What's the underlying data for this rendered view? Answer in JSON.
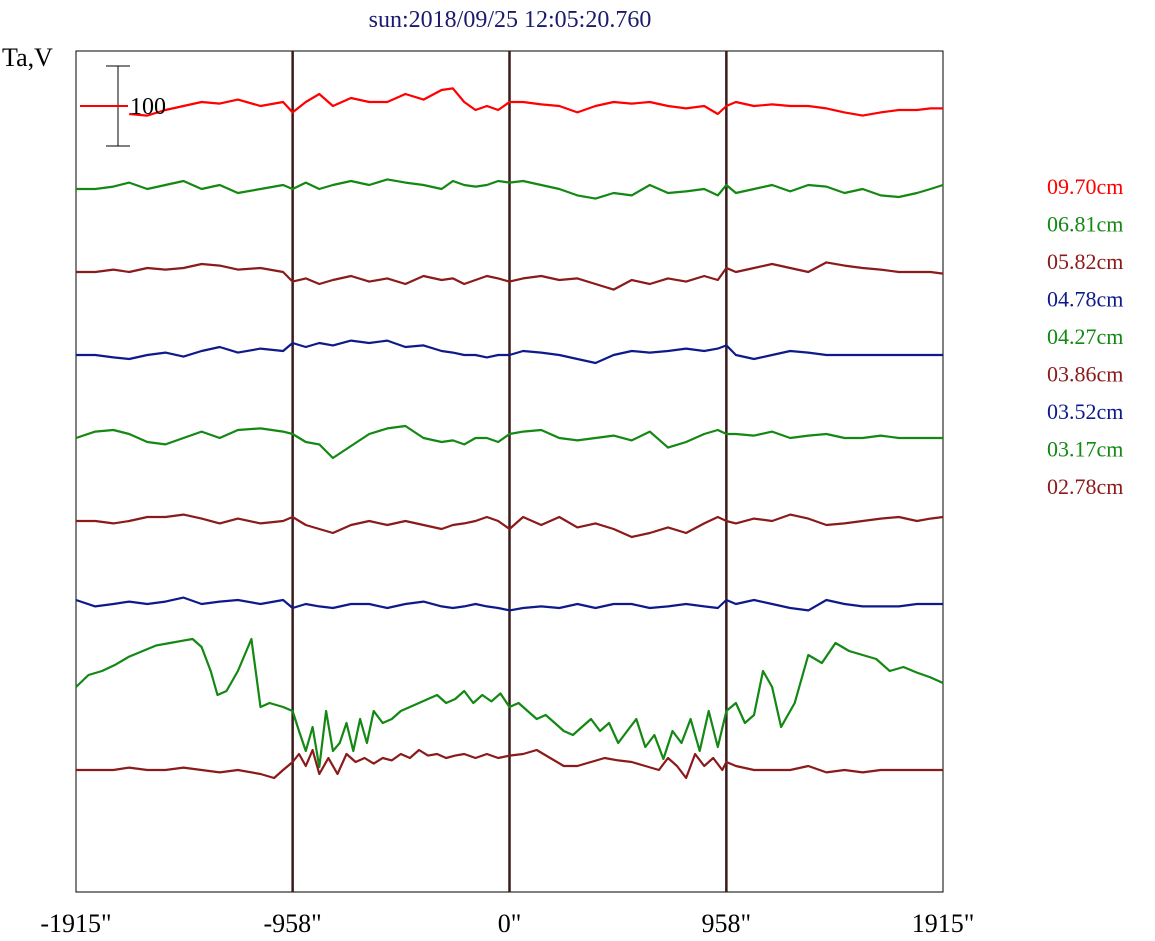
{
  "chart_data": {
    "type": "line",
    "title": "sun:2018/09/25 12:05:20.760",
    "ylabel": "Ta,V",
    "xlabel": "",
    "xlim": [
      -1915,
      1915
    ],
    "x_ticks": [
      "-1915\"",
      "-958\"",
      "0\"",
      "958\"",
      "1915\""
    ],
    "vertical_markers": [
      -958,
      0,
      958
    ],
    "marker_color": "#3a1a1a",
    "scale_bar": {
      "label": "100",
      "value": 100,
      "color_line": "#ff0000"
    },
    "grid": false,
    "legend_position": "right",
    "series": [
      {
        "name": "09.70cm",
        "color": "#ff0000",
        "offset": 0,
        "x": [
          -1915,
          -1830,
          -1750,
          -1680,
          -1600,
          -1520,
          -1440,
          -1360,
          -1280,
          -1200,
          -1100,
          -1000,
          -958,
          -900,
          -840,
          -780,
          -700,
          -620,
          -540,
          -460,
          -380,
          -300,
          -250,
          -200,
          -150,
          -100,
          -50,
          0,
          60,
          140,
          220,
          300,
          380,
          460,
          540,
          620,
          700,
          780,
          860,
          920,
          958,
          1000,
          1080,
          1160,
          1240,
          1320,
          1400,
          1480,
          1560,
          1640,
          1720,
          1800,
          1860,
          1915
        ],
        "values": [
          null,
          null,
          null,
          -10,
          -12,
          -5,
          0,
          5,
          3,
          8,
          0,
          5,
          -8,
          5,
          15,
          0,
          10,
          5,
          5,
          15,
          8,
          20,
          22,
          5,
          -5,
          0,
          -5,
          5,
          5,
          2,
          0,
          -8,
          0,
          5,
          3,
          5,
          0,
          -3,
          0,
          -10,
          0,
          5,
          0,
          2,
          0,
          0,
          -3,
          -8,
          -12,
          -8,
          -5,
          -5,
          -3,
          -3
        ]
      },
      {
        "name": "06.81cm",
        "color": "#138813",
        "offset": 1,
        "x": [
          -1915,
          -1830,
          -1750,
          -1680,
          -1600,
          -1520,
          -1440,
          -1360,
          -1280,
          -1200,
          -1100,
          -1000,
          -958,
          -900,
          -840,
          -780,
          -700,
          -620,
          -540,
          -460,
          -380,
          -300,
          -250,
          -200,
          -150,
          -100,
          -50,
          0,
          60,
          140,
          220,
          300,
          380,
          460,
          540,
          620,
          700,
          780,
          860,
          920,
          958,
          1000,
          1080,
          1160,
          1240,
          1320,
          1400,
          1480,
          1560,
          1640,
          1720,
          1800,
          1860,
          1915
        ],
        "values": [
          0,
          0,
          3,
          8,
          0,
          5,
          10,
          0,
          5,
          -5,
          0,
          5,
          0,
          8,
          0,
          5,
          10,
          5,
          12,
          8,
          5,
          0,
          10,
          5,
          3,
          5,
          10,
          8,
          10,
          5,
          0,
          -8,
          -12,
          -5,
          -8,
          5,
          -5,
          -3,
          0,
          -8,
          5,
          -5,
          0,
          5,
          -3,
          5,
          3,
          -5,
          0,
          -8,
          -10,
          -5,
          0,
          5
        ]
      },
      {
        "name": "05.82cm",
        "color": "#8b1a1a",
        "offset": 2,
        "x": [
          -1915,
          -1830,
          -1750,
          -1680,
          -1600,
          -1520,
          -1440,
          -1360,
          -1280,
          -1200,
          -1100,
          -1000,
          -958,
          -900,
          -840,
          -780,
          -700,
          -620,
          -540,
          -460,
          -380,
          -300,
          -250,
          -200,
          -150,
          -100,
          -50,
          0,
          60,
          140,
          220,
          300,
          380,
          460,
          540,
          620,
          700,
          780,
          860,
          920,
          958,
          1000,
          1080,
          1160,
          1240,
          1320,
          1400,
          1480,
          1560,
          1640,
          1720,
          1800,
          1860,
          1915
        ],
        "values": [
          0,
          0,
          3,
          0,
          5,
          3,
          5,
          10,
          8,
          3,
          5,
          0,
          -12,
          -8,
          -15,
          -10,
          -5,
          -12,
          -8,
          -15,
          -5,
          -10,
          -8,
          -15,
          -10,
          -5,
          -8,
          -12,
          -8,
          -5,
          -10,
          -8,
          -15,
          -22,
          -10,
          -15,
          -8,
          -12,
          -5,
          -10,
          5,
          0,
          5,
          10,
          5,
          0,
          12,
          8,
          5,
          3,
          0,
          0,
          0,
          -2
        ]
      },
      {
        "name": "04.78cm",
        "color": "#0f1a8a",
        "offset": 3,
        "x": [
          -1915,
          -1830,
          -1750,
          -1680,
          -1600,
          -1520,
          -1440,
          -1360,
          -1280,
          -1200,
          -1100,
          -1000,
          -958,
          -900,
          -840,
          -780,
          -700,
          -620,
          -540,
          -460,
          -380,
          -300,
          -250,
          -200,
          -150,
          -100,
          -50,
          0,
          60,
          140,
          220,
          300,
          380,
          460,
          540,
          620,
          700,
          780,
          860,
          920,
          958,
          1000,
          1080,
          1160,
          1240,
          1320,
          1400,
          1480,
          1560,
          1640,
          1720,
          1800,
          1860,
          1915
        ],
        "values": [
          0,
          0,
          -3,
          -5,
          0,
          3,
          -2,
          5,
          10,
          3,
          8,
          5,
          15,
          10,
          15,
          12,
          18,
          15,
          18,
          10,
          12,
          5,
          3,
          0,
          0,
          -3,
          0,
          0,
          5,
          3,
          0,
          -5,
          -10,
          0,
          5,
          3,
          5,
          8,
          5,
          8,
          12,
          0,
          -5,
          0,
          5,
          3,
          0,
          0,
          0,
          0,
          0,
          0,
          0,
          0
        ]
      },
      {
        "name": "04.27cm",
        "color": "#138813",
        "offset": 4,
        "x": [
          -1915,
          -1830,
          -1750,
          -1680,
          -1600,
          -1520,
          -1440,
          -1360,
          -1280,
          -1200,
          -1100,
          -1000,
          -958,
          -900,
          -840,
          -780,
          -700,
          -620,
          -540,
          -460,
          -380,
          -300,
          -250,
          -200,
          -150,
          -100,
          -50,
          0,
          60,
          140,
          220,
          300,
          380,
          460,
          540,
          620,
          700,
          780,
          860,
          920,
          958,
          1000,
          1080,
          1160,
          1240,
          1320,
          1400,
          1480,
          1560,
          1640,
          1720,
          1800,
          1860,
          1915
        ],
        "values": [
          0,
          8,
          10,
          5,
          -5,
          -8,
          0,
          8,
          0,
          10,
          12,
          8,
          5,
          -5,
          -8,
          -25,
          -10,
          5,
          12,
          15,
          0,
          -5,
          -3,
          -8,
          0,
          0,
          -5,
          5,
          8,
          10,
          0,
          -3,
          0,
          3,
          -3,
          8,
          -12,
          -5,
          5,
          10,
          5,
          5,
          3,
          8,
          0,
          3,
          5,
          0,
          0,
          3,
          0,
          0,
          0,
          0
        ]
      },
      {
        "name": "03.86cm",
        "color": "#8b1a1a",
        "offset": 5,
        "x": [
          -1915,
          -1830,
          -1750,
          -1680,
          -1600,
          -1520,
          -1440,
          -1360,
          -1280,
          -1200,
          -1100,
          -1000,
          -958,
          -900,
          -840,
          -780,
          -700,
          -620,
          -540,
          -460,
          -380,
          -300,
          -250,
          -200,
          -150,
          -100,
          -50,
          0,
          60,
          140,
          220,
          300,
          380,
          460,
          540,
          620,
          700,
          780,
          860,
          920,
          958,
          1000,
          1080,
          1160,
          1240,
          1320,
          1400,
          1480,
          1560,
          1640,
          1720,
          1800,
          1860,
          1915
        ],
        "values": [
          0,
          0,
          -3,
          0,
          5,
          5,
          8,
          3,
          -3,
          3,
          -3,
          0,
          5,
          -5,
          -10,
          -15,
          -5,
          0,
          -5,
          0,
          -5,
          -10,
          -5,
          -3,
          0,
          5,
          0,
          -10,
          5,
          -5,
          5,
          -8,
          -3,
          -10,
          -20,
          -15,
          -8,
          -15,
          -3,
          5,
          0,
          -3,
          3,
          0,
          8,
          3,
          -5,
          -3,
          0,
          3,
          5,
          0,
          3,
          5
        ]
      },
      {
        "name": "03.52cm",
        "color": "#0f1a8a",
        "offset": 6,
        "x": [
          -1915,
          -1830,
          -1750,
          -1680,
          -1600,
          -1520,
          -1440,
          -1360,
          -1280,
          -1200,
          -1100,
          -1000,
          -958,
          -900,
          -840,
          -780,
          -700,
          -620,
          -540,
          -460,
          -380,
          -300,
          -250,
          -200,
          -150,
          -100,
          -50,
          0,
          60,
          140,
          220,
          300,
          380,
          460,
          540,
          620,
          700,
          780,
          860,
          920,
          958,
          1000,
          1080,
          1160,
          1240,
          1320,
          1400,
          1480,
          1560,
          1640,
          1720,
          1800,
          1860,
          1915
        ],
        "values": [
          5,
          -3,
          0,
          3,
          0,
          3,
          8,
          0,
          3,
          5,
          0,
          5,
          -5,
          0,
          -3,
          -5,
          0,
          0,
          -5,
          0,
          3,
          -3,
          -5,
          -3,
          0,
          -3,
          -5,
          -8,
          -5,
          -3,
          -5,
          0,
          -5,
          0,
          0,
          -5,
          -3,
          0,
          -3,
          -5,
          5,
          0,
          5,
          0,
          -5,
          -8,
          5,
          0,
          -3,
          -3,
          -3,
          0,
          0,
          0
        ]
      },
      {
        "name": "03.17cm",
        "color": "#138813",
        "offset": 7,
        "x": [
          -1915,
          -1860,
          -1800,
          -1740,
          -1680,
          -1620,
          -1560,
          -1500,
          -1440,
          -1400,
          -1360,
          -1320,
          -1290,
          -1250,
          -1200,
          -1140,
          -1100,
          -1060,
          -1000,
          -958,
          -930,
          -900,
          -870,
          -840,
          -810,
          -780,
          -750,
          -720,
          -690,
          -660,
          -630,
          -600,
          -560,
          -520,
          -480,
          -440,
          -400,
          -360,
          -320,
          -280,
          -240,
          -200,
          -160,
          -120,
          -80,
          -40,
          0,
          40,
          80,
          120,
          160,
          200,
          240,
          280,
          320,
          360,
          400,
          440,
          480,
          520,
          560,
          600,
          640,
          680,
          720,
          760,
          800,
          840,
          880,
          920,
          958,
          1000,
          1040,
          1080,
          1120,
          1160,
          1200,
          1260,
          1320,
          1380,
          1440,
          1500,
          1560,
          1620,
          1680,
          1740,
          1800,
          1860,
          1915
        ],
        "values": [
          0,
          15,
          20,
          28,
          38,
          45,
          52,
          55,
          58,
          60,
          50,
          20,
          -10,
          -5,
          20,
          60,
          -25,
          -20,
          -25,
          -30,
          -55,
          -80,
          -50,
          -100,
          -30,
          -80,
          -70,
          -45,
          -80,
          -40,
          -70,
          -30,
          -45,
          -40,
          -30,
          -25,
          -20,
          -15,
          -10,
          -20,
          -15,
          -5,
          -20,
          -10,
          -18,
          -8,
          -25,
          -20,
          -30,
          -40,
          -35,
          -45,
          -55,
          -60,
          -50,
          -40,
          -55,
          -45,
          -70,
          -55,
          -40,
          -75,
          -60,
          -90,
          -55,
          -70,
          -40,
          -80,
          -30,
          -75,
          -30,
          -20,
          -45,
          -35,
          20,
          0,
          -50,
          -20,
          40,
          30,
          55,
          45,
          40,
          35,
          20,
          25,
          18,
          12,
          5
        ]
      },
      {
        "name": "02.78cm",
        "color": "#8b1a1a",
        "offset": 8,
        "x": [
          -1915,
          -1830,
          -1750,
          -1680,
          -1600,
          -1520,
          -1440,
          -1360,
          -1280,
          -1200,
          -1100,
          -1040,
          -1000,
          -958,
          -930,
          -900,
          -870,
          -840,
          -800,
          -760,
          -720,
          -680,
          -640,
          -600,
          -560,
          -520,
          -480,
          -440,
          -400,
          -360,
          -320,
          -280,
          -240,
          -200,
          -150,
          -100,
          -50,
          0,
          60,
          120,
          180,
          240,
          300,
          360,
          420,
          480,
          540,
          600,
          660,
          700,
          740,
          780,
          820,
          860,
          900,
          940,
          958,
          1000,
          1080,
          1160,
          1240,
          1320,
          1400,
          1480,
          1560,
          1640,
          1720,
          1800,
          1860,
          1915
        ],
        "values": [
          0,
          0,
          0,
          3,
          0,
          0,
          3,
          0,
          -3,
          0,
          -5,
          -10,
          0,
          10,
          20,
          5,
          25,
          -5,
          15,
          -5,
          20,
          10,
          15,
          8,
          15,
          12,
          20,
          15,
          25,
          18,
          20,
          15,
          18,
          20,
          15,
          20,
          15,
          18,
          20,
          25,
          15,
          5,
          5,
          10,
          15,
          12,
          10,
          5,
          0,
          15,
          5,
          -10,
          20,
          5,
          15,
          0,
          10,
          5,
          0,
          0,
          0,
          5,
          -3,
          0,
          -3,
          0,
          0,
          0,
          0,
          0
        ]
      }
    ]
  }
}
